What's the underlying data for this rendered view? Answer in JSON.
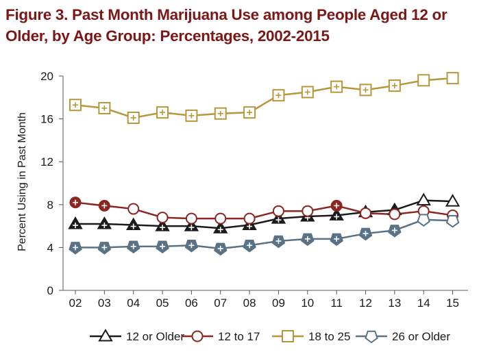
{
  "figure": {
    "title_line1": "Figure 3. Past Month Marijuana Use among People Aged 12 or",
    "title_line2": "Older, by Age Group: Percentages, 2002-2015"
  },
  "chart_data": {
    "type": "line",
    "title": "Figure 3. Past Month Marijuana Use among People Aged 12 or Older, by Age Group: Percentages, 2002-2015",
    "xlabel": "",
    "ylabel": "Percent Using in Past Month",
    "categories": [
      "02",
      "03",
      "04",
      "05",
      "06",
      "07",
      "08",
      "09",
      "10",
      "11",
      "12",
      "13",
      "14",
      "15"
    ],
    "yticks": [
      0,
      4,
      8,
      12,
      16,
      20
    ],
    "ylim": [
      0,
      20
    ],
    "grid": false,
    "legend_position": "bottom",
    "series": [
      {
        "name": "12 or Older",
        "marker": "triangle",
        "color": "#1a1a1a",
        "values": [
          6.2,
          6.2,
          6.1,
          6.0,
          6.0,
          5.8,
          6.1,
          6.7,
          6.9,
          7.0,
          7.3,
          7.5,
          8.4,
          8.3
        ],
        "significant": [
          true,
          true,
          true,
          true,
          true,
          true,
          true,
          true,
          true,
          true,
          true,
          true,
          false,
          false
        ]
      },
      {
        "name": "12 to 17",
        "marker": "circle",
        "color": "#8b2720",
        "values": [
          8.2,
          7.9,
          7.6,
          6.8,
          6.7,
          6.7,
          6.7,
          7.4,
          7.4,
          7.9,
          7.2,
          7.1,
          7.4,
          7.0
        ],
        "significant": [
          true,
          true,
          false,
          false,
          false,
          false,
          false,
          false,
          false,
          true,
          false,
          false,
          false,
          false
        ]
      },
      {
        "name": "18 to 25",
        "marker": "square",
        "color": "#b8963a",
        "values": [
          17.3,
          17.0,
          16.1,
          16.6,
          16.3,
          16.5,
          16.6,
          18.2,
          18.5,
          19.0,
          18.7,
          19.1,
          19.6,
          19.8
        ],
        "significant": [
          true,
          true,
          true,
          true,
          true,
          true,
          true,
          true,
          true,
          true,
          true,
          true,
          false,
          false
        ]
      },
      {
        "name": "26 or Older",
        "marker": "pentagon",
        "color": "#5a7285",
        "values": [
          4.0,
          4.0,
          4.1,
          4.1,
          4.2,
          3.9,
          4.2,
          4.6,
          4.8,
          4.8,
          5.3,
          5.6,
          6.6,
          6.5
        ],
        "significant": [
          true,
          true,
          true,
          true,
          true,
          true,
          true,
          true,
          true,
          true,
          true,
          true,
          false,
          false
        ]
      }
    ]
  }
}
